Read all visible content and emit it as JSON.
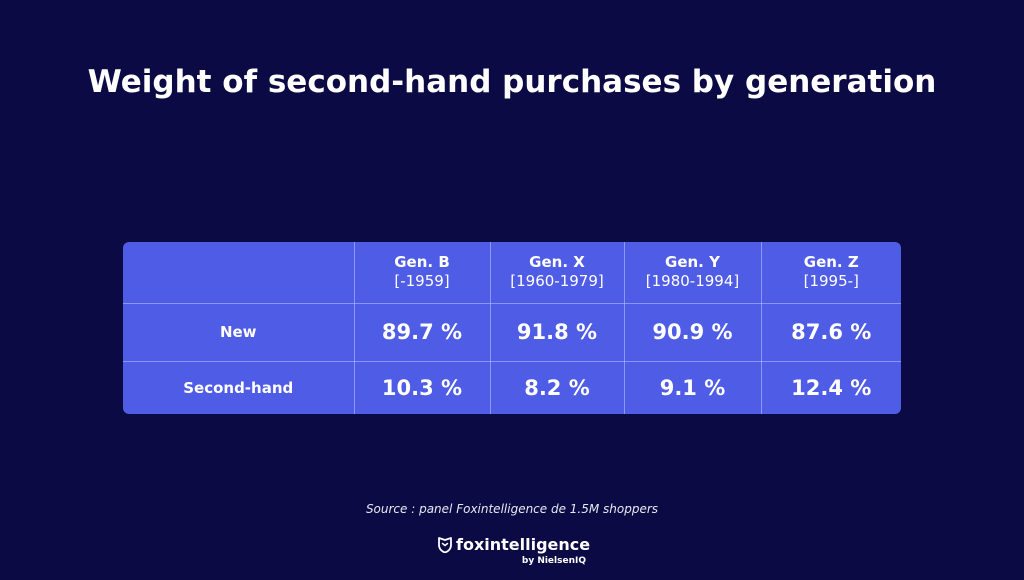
{
  "title": "Weight of second-hand purchases by generation",
  "chart_data": {
    "type": "table",
    "title": "Weight of second-hand purchases by generation",
    "columns": [
      {
        "name": "Gen. B",
        "range": "[-1959]"
      },
      {
        "name": "Gen. X",
        "range": "[1960-1979]"
      },
      {
        "name": "Gen. Y",
        "range": "[1980-1994]"
      },
      {
        "name": "Gen. Z",
        "range": "[1995-]"
      }
    ],
    "rows": [
      {
        "label": "New",
        "cells": [
          "89.7 %",
          "91.8 %",
          "90.9 %",
          "87.6 %"
        ],
        "values": [
          89.7,
          91.8,
          90.9,
          87.6
        ]
      },
      {
        "label": "Second-hand",
        "cells": [
          "10.3 %",
          "8.2 %",
          "9.1 %",
          "12.4 %"
        ],
        "values": [
          10.3,
          8.2,
          9.1,
          12.4
        ]
      }
    ]
  },
  "source": "Source : panel Foxintelligence de 1.5M shoppers",
  "logo": {
    "icon": "fox-shield-icon",
    "name": "foxintelligence",
    "byline": "by NielsenIQ"
  },
  "colors": {
    "background": "#0c0a44",
    "table_fill": "#4f5ce6",
    "text": "#ffffff"
  }
}
